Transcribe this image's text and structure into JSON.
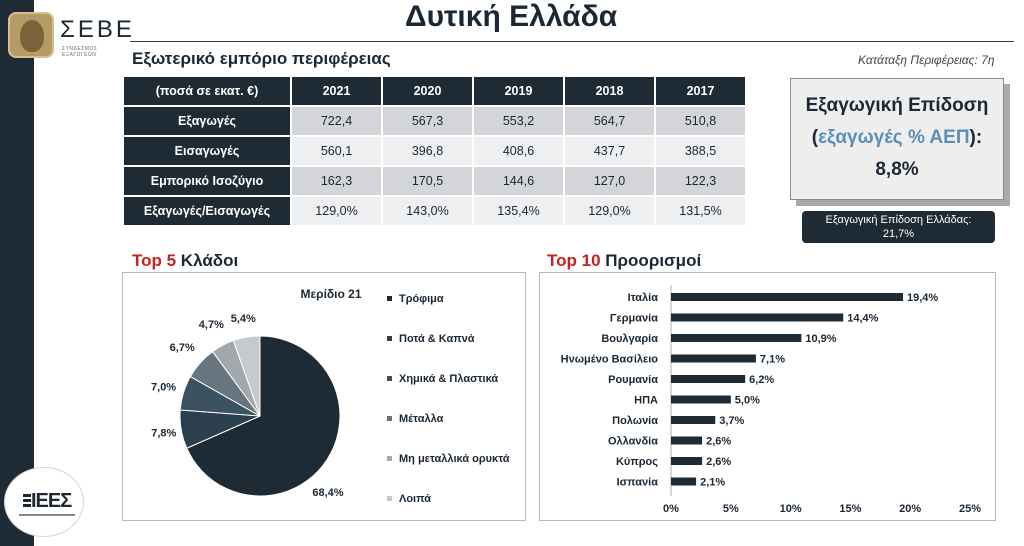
{
  "header": {
    "title": "Δυτική Ελλάδα",
    "logo_text": "ΣΕΒΕ",
    "logo_subtitle": "ΣΥΝΔΕΣΜΟΣ ΕΞΑΓΩΓΕΩΝ",
    "footer_logo_text": "ΙΕΕΣ",
    "ranking": "Κατάταξη Περιφέρειας: 7η"
  },
  "trade_table": {
    "heading": "Εξωτερικό εμπόριο περιφέρειας",
    "columns": [
      "(ποσά σε εκατ. €)",
      "2021",
      "2020",
      "2019",
      "2018",
      "2017"
    ],
    "rows": [
      {
        "label": "Εξαγωγές",
        "values": [
          "722,4",
          "567,3",
          "553,2",
          "564,7",
          "510,8"
        ]
      },
      {
        "label": "Εισαγωγές",
        "values": [
          "560,1",
          "396,8",
          "408,6",
          "437,7",
          "388,5"
        ]
      },
      {
        "label": "Εμπορικό Ισοζύγιο",
        "values": [
          "162,3",
          "170,5",
          "144,6",
          "127,0",
          "122,3"
        ]
      },
      {
        "label": "Εξαγωγές/Εισαγωγές",
        "values": [
          "129,0%",
          "143,0%",
          "135,4%",
          "129,0%",
          "131,5%"
        ]
      }
    ]
  },
  "kpi": {
    "line1": "Εξαγωγική Επίδοση",
    "line2_open": "(",
    "line2_highlight": "εξαγωγές % ΑΕΠ",
    "line2_close": "):",
    "value": "8,8%",
    "note_line1": "Εξαγωγική Επίδοση Ελλάδας:",
    "note_line2": "21,7%"
  },
  "sections": {
    "pie_heading_red": "Top 5",
    "pie_heading_rest": " Κλάδοι",
    "bar_heading_red": "Top 10",
    "bar_heading_rest": " Προορισμοί"
  },
  "colors": {
    "navy": "#1e2b34",
    "accent_red": "#c8211e",
    "accent_blue": "#5b8fb9"
  },
  "chart_data": [
    {
      "type": "pie",
      "title": "Μερίδιο 21",
      "categories": [
        "Τρόφιμα",
        "Ποτά & Καπνά",
        "Χημικά & Πλαστικά",
        "Μέταλλα",
        "Μη μεταλλικά ορυκτά",
        "Λοιπά"
      ],
      "values": [
        68.4,
        7.8,
        7.0,
        6.7,
        4.7,
        5.4
      ],
      "labels": [
        "68,4%",
        "7,8%",
        "7,0%",
        "6,7%",
        "4,7%",
        "5,4%"
      ],
      "colors": [
        "#1e2b34",
        "#2c3f4c",
        "#3b5260",
        "#68747e",
        "#a2a8ad",
        "#c7cacd"
      ],
      "legend": "right"
    },
    {
      "type": "bar",
      "orientation": "horizontal",
      "categories": [
        "Ιταλία",
        "Γερμανία",
        "Βουλγαρία",
        "Ηνωμένο Βασίλειο",
        "Ρουμανία",
        "ΗΠΑ",
        "Πολωνία",
        "Ολλανδία",
        "Κύπρος",
        "Ισπανία"
      ],
      "values": [
        19.4,
        14.4,
        10.9,
        7.1,
        6.2,
        5.0,
        3.7,
        2.6,
        2.6,
        2.1
      ],
      "labels": [
        "19,4%",
        "14,4%",
        "10,9%",
        "7,1%",
        "6,2%",
        "5,0%",
        "3,7%",
        "2,6%",
        "2,6%",
        "2,1%"
      ],
      "xlim": [
        0,
        25
      ],
      "xticks": [
        "0%",
        "5%",
        "10%",
        "15%",
        "20%",
        "25%"
      ],
      "color": "#1e2b34",
      "grid": false
    }
  ]
}
